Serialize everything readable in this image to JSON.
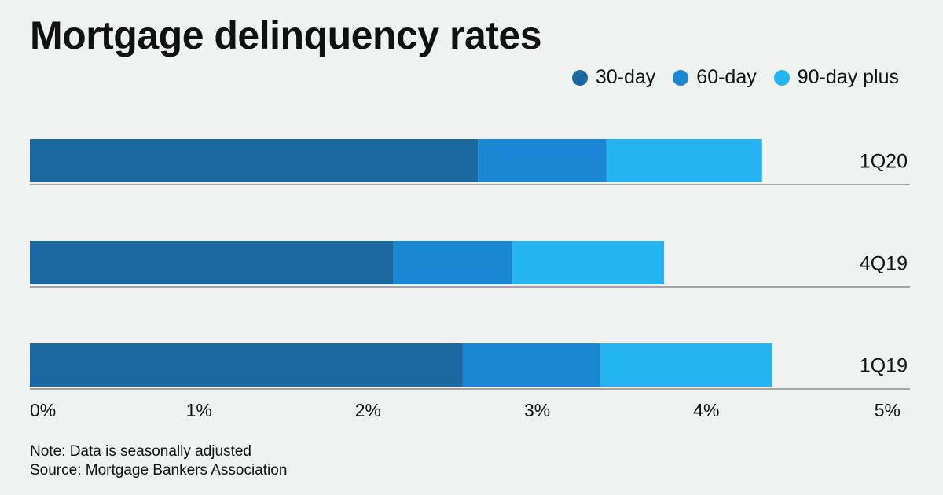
{
  "header": {
    "title": "Mortgage delinquency rates"
  },
  "footer": {
    "note": "Note: Data is seasonally adjusted",
    "source": "Source: Mortgage Bankers Association"
  },
  "chart_data": {
    "type": "bar",
    "orientation": "horizontal",
    "stacked": true,
    "title": "Mortgage delinquency rates",
    "xlabel": "",
    "ylabel": "",
    "categories": [
      "1Q20",
      "4Q19",
      "1Q19"
    ],
    "series": [
      {
        "name": "30-day",
        "color": "#1a689f",
        "values": [
          2.65,
          2.15,
          2.56
        ]
      },
      {
        "name": "60-day",
        "color": "#1a87d4",
        "values": [
          0.76,
          0.7,
          0.81
        ]
      },
      {
        "name": "90-day plus",
        "color": "#24b4f2",
        "values": [
          0.92,
          0.9,
          1.02
        ]
      }
    ],
    "xlim": [
      0,
      5
    ],
    "xticks": [
      0,
      1,
      2,
      3,
      4,
      5
    ],
    "tick_labels": [
      "0%",
      "1%",
      "2%",
      "3%",
      "4%",
      "5%"
    ],
    "grid": false,
    "legend_position": "top-right"
  }
}
